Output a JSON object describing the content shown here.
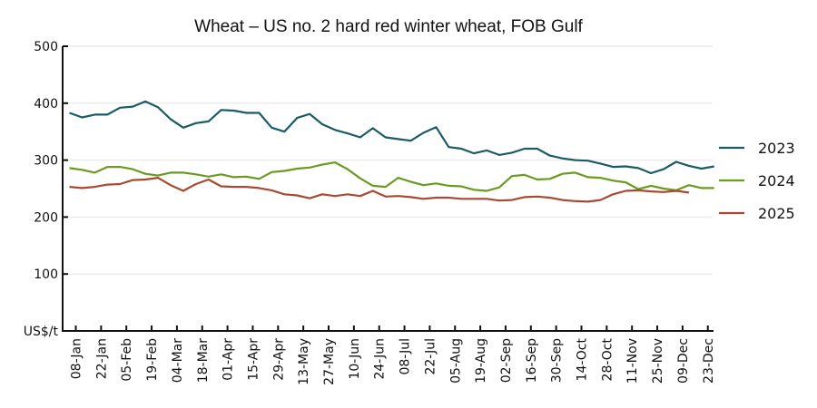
{
  "chart_data": {
    "type": "line",
    "title": "Wheat – US no. 2 hard red winter wheat, FOB Gulf",
    "xlabel": "",
    "ylabel": "US$/t",
    "ylim": [
      0,
      500
    ],
    "yticks": [
      100,
      200,
      300,
      400,
      500
    ],
    "ytick_labels": [
      "100",
      "200",
      "300",
      "400",
      "500"
    ],
    "xtick_labels": [
      "08-Jan",
      "22-Jan",
      "05-Feb",
      "19-Feb",
      "04-Mar",
      "18-Mar",
      "01-Apr",
      "15-Apr",
      "29-Apr",
      "13-May",
      "27-May",
      "10-Jun",
      "24-Jun",
      "08-Jul",
      "22-Jul",
      "05-Aug",
      "19-Aug",
      "02-Sep",
      "16-Sep",
      "30-Sep",
      "14-Oct",
      "28-Oct",
      "11-Nov",
      "25-Nov",
      "09-Dec",
      "23-Dec"
    ],
    "grid": true,
    "legend_position": "right",
    "series": [
      {
        "name": "2023",
        "color": "#1a5c63",
        "values": [
          383,
          375,
          380,
          380,
          392,
          394,
          403,
          393,
          372,
          357,
          365,
          368,
          388,
          387,
          383,
          383,
          357,
          350,
          374,
          381,
          363,
          353,
          347,
          340,
          356,
          340,
          337,
          334,
          348,
          358,
          323,
          320,
          312,
          317,
          309,
          313,
          320,
          320,
          308,
          303,
          300,
          299,
          294,
          288,
          289,
          286,
          277,
          284,
          297,
          290,
          285,
          289
        ]
      },
      {
        "name": "2024",
        "color": "#6a9a1f",
        "values": [
          286,
          283,
          278,
          288,
          288,
          284,
          276,
          273,
          278,
          278,
          275,
          271,
          275,
          270,
          271,
          267,
          279,
          281,
          285,
          287,
          292,
          296,
          284,
          268,
          255,
          253,
          269,
          262,
          256,
          259,
          255,
          254,
          248,
          246,
          252,
          272,
          274,
          266,
          267,
          276,
          278,
          270,
          269,
          264,
          261,
          249,
          255,
          250,
          247,
          256,
          251,
          251
        ]
      },
      {
        "name": "2025",
        "color": "#a84a32",
        "values": [
          253,
          251,
          253,
          257,
          258,
          265,
          266,
          269,
          256,
          246,
          258,
          266,
          254,
          253,
          253,
          251,
          247,
          240,
          238,
          233,
          240,
          237,
          240,
          237,
          246,
          236,
          237,
          235,
          232,
          234,
          234,
          232,
          232,
          232,
          229,
          230,
          235,
          236,
          234,
          230,
          228,
          227,
          230,
          240,
          246,
          247,
          245,
          244,
          246,
          243
        ]
      }
    ]
  }
}
